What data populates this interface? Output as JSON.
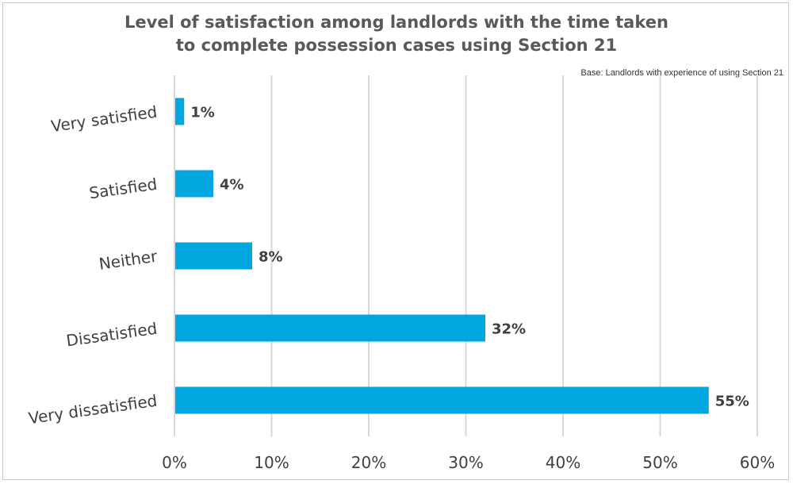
{
  "chart_data": {
    "type": "bar",
    "orientation": "horizontal",
    "title_lines": [
      "Level of satisfaction among landlords with the time taken",
      "to complete possession cases using Section 21"
    ],
    "subtitle": "Base: Landlords with experience of using Section 21",
    "categories": [
      "Very satisfied",
      "Satisfied",
      "Neither",
      "Dissatisfied",
      "Very dissatisfied"
    ],
    "values": [
      1,
      4,
      8,
      32,
      55
    ],
    "data_labels": [
      "1%",
      "4%",
      "8%",
      "32%",
      "55%"
    ],
    "xlim": [
      0,
      60
    ],
    "x_ticks": [
      "0%",
      "10%",
      "20%",
      "30%",
      "40%",
      "50%",
      "60%"
    ],
    "grid": "vertical",
    "legend": "none",
    "bar_color": "#00a6e0"
  }
}
